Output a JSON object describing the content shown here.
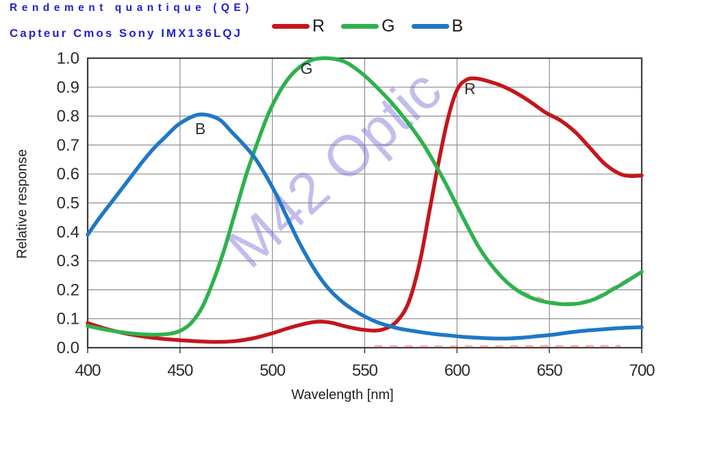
{
  "header": {
    "title_line1": "Rendement quantique (QE)",
    "title_line2": "Capteur Cmos Sony IMX136LQJ",
    "title_color": "#2222cf"
  },
  "legend": [
    {
      "label": "R",
      "color": "#c4161c"
    },
    {
      "label": "G",
      "color": "#2db24d"
    },
    {
      "label": "B",
      "color": "#1f78c6"
    }
  ],
  "watermark": {
    "text": "M42 Optic",
    "color": "rgba(122,108,214,0.45)"
  },
  "chart_data": {
    "type": "line",
    "title": "Rendement quantique (QE) - Capteur Cmos Sony IMX136LQJ",
    "xlabel": "Wavelength [nm]",
    "ylabel": "Relative response",
    "xlim": [
      400,
      700
    ],
    "ylim": [
      0,
      1
    ],
    "grid": true,
    "legend_position": "top",
    "x_ticks": [
      400,
      450,
      500,
      550,
      600,
      650,
      700
    ],
    "y_ticks": [
      0,
      0.1,
      0.2,
      0.3,
      0.4,
      0.5,
      0.6,
      0.7,
      0.8,
      0.9,
      1.0
    ],
    "y_tick_labels": [
      "0.0",
      "0.1",
      "0.2",
      "0.3",
      "0.4",
      "0.5",
      "0.6",
      "0.7",
      "0.8",
      "0.9",
      "1.0"
    ],
    "grid_color": "#8c8c8c",
    "border_color": "#3b3b3b",
    "series": [
      {
        "name": "R",
        "color": "#c4161c",
        "points": [
          [
            400,
            0.085
          ],
          [
            410,
            0.065
          ],
          [
            420,
            0.05
          ],
          [
            430,
            0.039
          ],
          [
            440,
            0.031
          ],
          [
            450,
            0.026
          ],
          [
            460,
            0.022
          ],
          [
            470,
            0.02
          ],
          [
            480,
            0.023
          ],
          [
            490,
            0.033
          ],
          [
            500,
            0.05
          ],
          [
            510,
            0.07
          ],
          [
            520,
            0.086
          ],
          [
            526,
            0.09
          ],
          [
            532,
            0.086
          ],
          [
            540,
            0.073
          ],
          [
            548,
            0.063
          ],
          [
            556,
            0.059
          ],
          [
            562,
            0.068
          ],
          [
            568,
            0.095
          ],
          [
            574,
            0.16
          ],
          [
            580,
            0.3
          ],
          [
            585,
            0.47
          ],
          [
            590,
            0.64
          ],
          [
            595,
            0.79
          ],
          [
            600,
            0.89
          ],
          [
            605,
            0.925
          ],
          [
            610,
            0.93
          ],
          [
            616,
            0.922
          ],
          [
            624,
            0.905
          ],
          [
            632,
            0.88
          ],
          [
            640,
            0.848
          ],
          [
            648,
            0.812
          ],
          [
            656,
            0.785
          ],
          [
            664,
            0.745
          ],
          [
            672,
            0.69
          ],
          [
            680,
            0.635
          ],
          [
            688,
            0.601
          ],
          [
            694,
            0.593
          ],
          [
            700,
            0.595
          ]
        ]
      },
      {
        "name": "G",
        "color": "#2db24d",
        "points": [
          [
            400,
            0.075
          ],
          [
            410,
            0.062
          ],
          [
            420,
            0.052
          ],
          [
            428,
            0.047
          ],
          [
            436,
            0.045
          ],
          [
            444,
            0.048
          ],
          [
            450,
            0.058
          ],
          [
            456,
            0.085
          ],
          [
            462,
            0.14
          ],
          [
            468,
            0.23
          ],
          [
            474,
            0.34
          ],
          [
            480,
            0.47
          ],
          [
            486,
            0.6
          ],
          [
            492,
            0.71
          ],
          [
            498,
            0.81
          ],
          [
            504,
            0.885
          ],
          [
            510,
            0.94
          ],
          [
            516,
            0.975
          ],
          [
            522,
            0.995
          ],
          [
            528,
            1.0
          ],
          [
            534,
            0.997
          ],
          [
            540,
            0.985
          ],
          [
            546,
            0.96
          ],
          [
            552,
            0.928
          ],
          [
            558,
            0.89
          ],
          [
            564,
            0.85
          ],
          [
            570,
            0.805
          ],
          [
            576,
            0.755
          ],
          [
            582,
            0.7
          ],
          [
            588,
            0.635
          ],
          [
            594,
            0.565
          ],
          [
            600,
            0.49
          ],
          [
            606,
            0.415
          ],
          [
            612,
            0.345
          ],
          [
            618,
            0.29
          ],
          [
            624,
            0.245
          ],
          [
            630,
            0.21
          ],
          [
            636,
            0.185
          ],
          [
            642,
            0.168
          ],
          [
            648,
            0.158
          ],
          [
            654,
            0.152
          ],
          [
            660,
            0.15
          ],
          [
            666,
            0.153
          ],
          [
            672,
            0.162
          ],
          [
            678,
            0.178
          ],
          [
            684,
            0.2
          ],
          [
            690,
            0.222
          ],
          [
            695,
            0.242
          ],
          [
            700,
            0.262
          ]
        ]
      },
      {
        "name": "B",
        "color": "#1f78c6",
        "points": [
          [
            400,
            0.39
          ],
          [
            406,
            0.445
          ],
          [
            412,
            0.495
          ],
          [
            418,
            0.545
          ],
          [
            424,
            0.595
          ],
          [
            430,
            0.645
          ],
          [
            436,
            0.69
          ],
          [
            442,
            0.728
          ],
          [
            448,
            0.765
          ],
          [
            454,
            0.79
          ],
          [
            460,
            0.805
          ],
          [
            466,
            0.802
          ],
          [
            472,
            0.785
          ],
          [
            478,
            0.745
          ],
          [
            484,
            0.705
          ],
          [
            490,
            0.66
          ],
          [
            496,
            0.6
          ],
          [
            502,
            0.53
          ],
          [
            508,
            0.45
          ],
          [
            514,
            0.37
          ],
          [
            520,
            0.3
          ],
          [
            526,
            0.24
          ],
          [
            532,
            0.193
          ],
          [
            538,
            0.158
          ],
          [
            544,
            0.13
          ],
          [
            550,
            0.108
          ],
          [
            556,
            0.09
          ],
          [
            562,
            0.077
          ],
          [
            568,
            0.067
          ],
          [
            574,
            0.06
          ],
          [
            580,
            0.054
          ],
          [
            588,
            0.047
          ],
          [
            596,
            0.042
          ],
          [
            604,
            0.037
          ],
          [
            612,
            0.034
          ],
          [
            620,
            0.032
          ],
          [
            628,
            0.032
          ],
          [
            636,
            0.035
          ],
          [
            644,
            0.04
          ],
          [
            652,
            0.045
          ],
          [
            660,
            0.052
          ],
          [
            668,
            0.058
          ],
          [
            676,
            0.062
          ],
          [
            684,
            0.066
          ],
          [
            692,
            0.069
          ],
          [
            700,
            0.071
          ]
        ]
      }
    ],
    "curve_labels": [
      {
        "text": "B",
        "x": 461,
        "y": 0.757
      },
      {
        "text": "G",
        "x": 518.5,
        "y": 0.965
      },
      {
        "text": "R",
        "x": 607,
        "y": 0.895
      }
    ],
    "artifacts": [
      {
        "points": [
          [
            556,
            0.004
          ],
          [
            580,
            0.003
          ],
          [
            610,
            0.003
          ],
          [
            640,
            0.004
          ],
          [
            665,
            0.004
          ],
          [
            688,
            0.005
          ]
        ]
      },
      {
        "points": [
          [
            636,
            0.19
          ],
          [
            650,
            0.16
          ],
          [
            660,
            0.153
          ],
          [
            672,
            0.165
          ],
          [
            684,
            0.205
          ],
          [
            696,
            0.248
          ]
        ]
      }
    ],
    "artifact_color": "rgba(200,45,45,0.33)"
  }
}
